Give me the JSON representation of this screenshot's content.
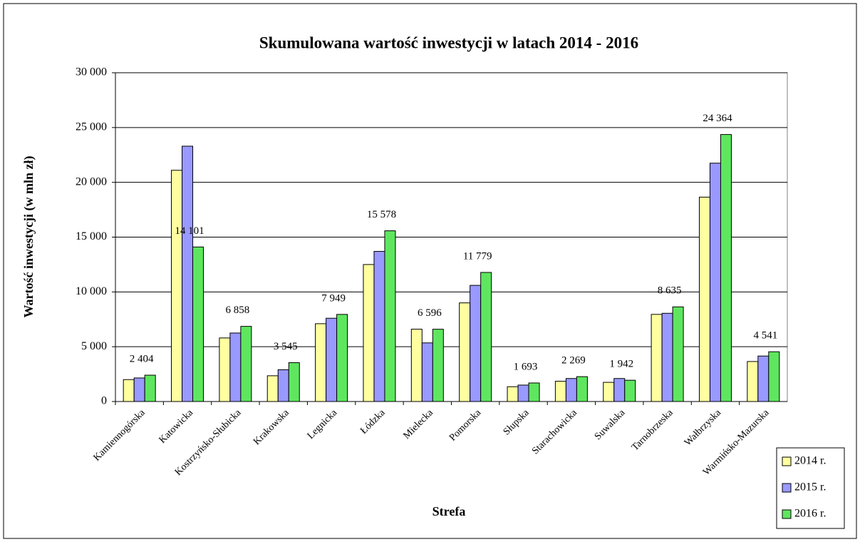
{
  "chart_data": {
    "type": "bar",
    "title": "Skumulowana wartość inwestycji w latach 2014 - 2016",
    "x_label": "Strefa",
    "y_label": "Wartość inwestycji (w mln zł)",
    "categories": [
      "Kamiennogórska",
      "Katowicka",
      "Kostrzyńsko-Słubicka",
      "Krakowska",
      "Legnicka",
      "Łódzka",
      "Mielecka",
      "Pomorska",
      "Słupska",
      "Starachowicka",
      "Suwalska",
      "Tarnobrzeska",
      "Wałbrzyska",
      "Warmińsko-Mazurska"
    ],
    "series": [
      {
        "name": "2014 r.",
        "color": "#ffffa0",
        "values": [
          2000,
          21100,
          5800,
          2350,
          7100,
          12500,
          6600,
          9000,
          1350,
          1850,
          1750,
          7950,
          18650,
          3650
        ]
      },
      {
        "name": "2015 r.",
        "color": "#9999ff",
        "values": [
          2150,
          23300,
          6250,
          2900,
          7600,
          13700,
          5350,
          10600,
          1500,
          2100,
          2100,
          8050,
          21750,
          4150
        ]
      },
      {
        "name": "2016 r.",
        "color": "#5fe65f",
        "values": [
          2404,
          14101,
          6858,
          3545,
          7949,
          15578,
          6596,
          11779,
          1693,
          2269,
          1942,
          8635,
          24364,
          4541
        ],
        "value_labels": [
          "2 404",
          "14 101",
          "6 858",
          "3 545",
          "7 949",
          "15 578",
          "6 596",
          "11 779",
          "1 693",
          "2 269",
          "1 942",
          "8 635",
          "24 364",
          "4 541"
        ]
      }
    ],
    "ylim": [
      0,
      30000
    ],
    "yticks": [
      0,
      {
        "value": 5000,
        "label": "5 000"
      },
      {
        "value": 10000,
        "label": "10 000"
      },
      {
        "value": 15000,
        "label": "15 000"
      },
      {
        "value": 20000,
        "label": "20 000"
      },
      {
        "value": 25000,
        "label": "25 000"
      },
      {
        "value": 30000,
        "label": "30 000"
      }
    ],
    "grid": true,
    "legend": "lower right"
  }
}
